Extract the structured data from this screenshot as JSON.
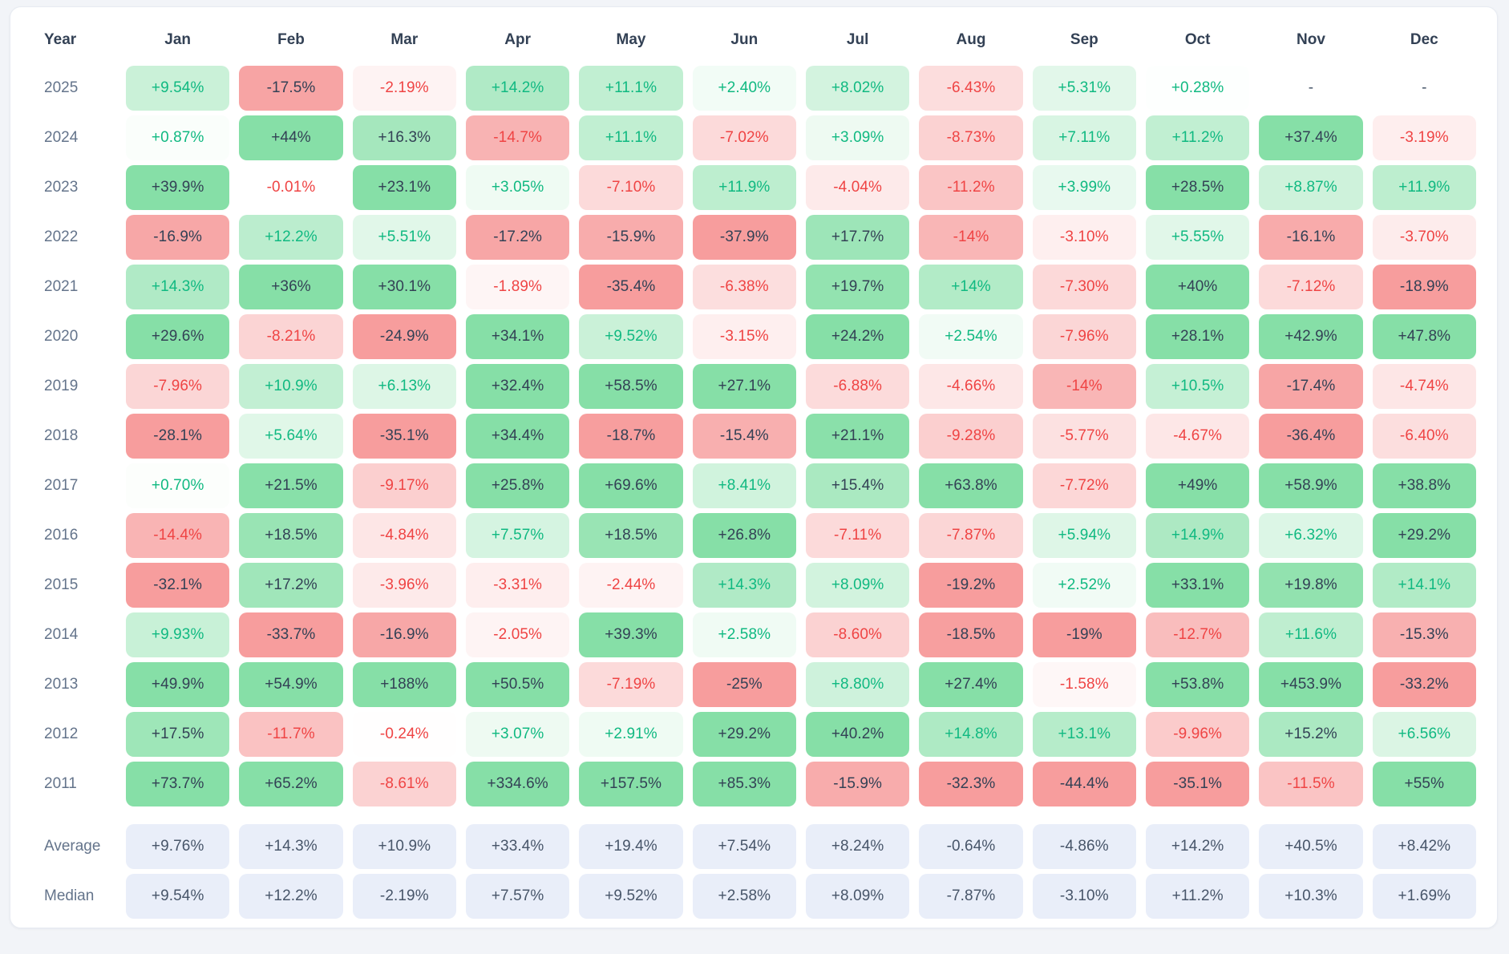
{
  "chart_data": {
    "type": "heatmap",
    "description": "Monthly percentage returns by year with average and median summary rows",
    "columns": [
      "Year",
      "Jan",
      "Feb",
      "Mar",
      "Apr",
      "May",
      "Jun",
      "Jul",
      "Aug",
      "Sep",
      "Oct",
      "Nov",
      "Dec"
    ],
    "rows": [
      {
        "year": "2025",
        "values": [
          "+9.54%",
          "-17.5%",
          "-2.19%",
          "+14.2%",
          "+11.1%",
          "+2.40%",
          "+8.02%",
          "-6.43%",
          "+5.31%",
          "+0.28%",
          "-",
          "-"
        ]
      },
      {
        "year": "2024",
        "values": [
          "+0.87%",
          "+44%",
          "+16.3%",
          "-14.7%",
          "+11.1%",
          "-7.02%",
          "+3.09%",
          "-8.73%",
          "+7.11%",
          "+11.2%",
          "+37.4%",
          "-3.19%"
        ]
      },
      {
        "year": "2023",
        "values": [
          "+39.9%",
          "-0.01%",
          "+23.1%",
          "+3.05%",
          "-7.10%",
          "+11.9%",
          "-4.04%",
          "-11.2%",
          "+3.99%",
          "+28.5%",
          "+8.87%",
          "+11.9%"
        ]
      },
      {
        "year": "2022",
        "values": [
          "-16.9%",
          "+12.2%",
          "+5.51%",
          "-17.2%",
          "-15.9%",
          "-37.9%",
          "+17.7%",
          "-14%",
          "-3.10%",
          "+5.55%",
          "-16.1%",
          "-3.70%"
        ]
      },
      {
        "year": "2021",
        "values": [
          "+14.3%",
          "+36%",
          "+30.1%",
          "-1.89%",
          "-35.4%",
          "-6.38%",
          "+19.7%",
          "+14%",
          "-7.30%",
          "+40%",
          "-7.12%",
          "-18.9%"
        ]
      },
      {
        "year": "2020",
        "values": [
          "+29.6%",
          "-8.21%",
          "-24.9%",
          "+34.1%",
          "+9.52%",
          "-3.15%",
          "+24.2%",
          "+2.54%",
          "-7.96%",
          "+28.1%",
          "+42.9%",
          "+47.8%"
        ]
      },
      {
        "year": "2019",
        "values": [
          "-7.96%",
          "+10.9%",
          "+6.13%",
          "+32.4%",
          "+58.5%",
          "+27.1%",
          "-6.88%",
          "-4.66%",
          "-14%",
          "+10.5%",
          "-17.4%",
          "-4.74%"
        ]
      },
      {
        "year": "2018",
        "values": [
          "-28.1%",
          "+5.64%",
          "-35.1%",
          "+34.4%",
          "-18.7%",
          "-15.4%",
          "+21.1%",
          "-9.28%",
          "-5.77%",
          "-4.67%",
          "-36.4%",
          "-6.40%"
        ]
      },
      {
        "year": "2017",
        "values": [
          "+0.70%",
          "+21.5%",
          "-9.17%",
          "+25.8%",
          "+69.6%",
          "+8.41%",
          "+15.4%",
          "+63.8%",
          "-7.72%",
          "+49%",
          "+58.9%",
          "+38.8%"
        ]
      },
      {
        "year": "2016",
        "values": [
          "-14.4%",
          "+18.5%",
          "-4.84%",
          "+7.57%",
          "+18.5%",
          "+26.8%",
          "-7.11%",
          "-7.87%",
          "+5.94%",
          "+14.9%",
          "+6.32%",
          "+29.2%"
        ]
      },
      {
        "year": "2015",
        "values": [
          "-32.1%",
          "+17.2%",
          "-3.96%",
          "-3.31%",
          "-2.44%",
          "+14.3%",
          "+8.09%",
          "-19.2%",
          "+2.52%",
          "+33.1%",
          "+19.8%",
          "+14.1%"
        ]
      },
      {
        "year": "2014",
        "values": [
          "+9.93%",
          "-33.7%",
          "-16.9%",
          "-2.05%",
          "+39.3%",
          "+2.58%",
          "-8.60%",
          "-18.5%",
          "-19%",
          "-12.7%",
          "+11.6%",
          "-15.3%"
        ]
      },
      {
        "year": "2013",
        "values": [
          "+49.9%",
          "+54.9%",
          "+188%",
          "+50.5%",
          "-7.19%",
          "-25%",
          "+8.80%",
          "+27.4%",
          "-1.58%",
          "+53.8%",
          "+453.9%",
          "-33.2%"
        ]
      },
      {
        "year": "2012",
        "values": [
          "+17.5%",
          "-11.7%",
          "-0.24%",
          "+3.07%",
          "+2.91%",
          "+29.2%",
          "+40.2%",
          "+14.8%",
          "+13.1%",
          "-9.96%",
          "+15.2%",
          "+6.56%"
        ]
      },
      {
        "year": "2011",
        "values": [
          "+73.7%",
          "+65.2%",
          "-8.61%",
          "+334.6%",
          "+157.5%",
          "+85.3%",
          "-15.9%",
          "-32.3%",
          "-44.4%",
          "-35.1%",
          "-11.5%",
          "+55%"
        ]
      }
    ],
    "summary": [
      {
        "label": "Average",
        "values": [
          "+9.76%",
          "+14.3%",
          "+10.9%",
          "+33.4%",
          "+19.4%",
          "+7.54%",
          "+8.24%",
          "-0.64%",
          "-4.86%",
          "+14.2%",
          "+40.5%",
          "+8.42%"
        ]
      },
      {
        "label": "Median",
        "values": [
          "+9.54%",
          "+12.2%",
          "-2.19%",
          "+7.57%",
          "+9.52%",
          "+2.58%",
          "+8.09%",
          "-7.87%",
          "-3.10%",
          "+11.2%",
          "+10.3%",
          "+1.69%"
        ]
      }
    ]
  },
  "colors": {
    "positive_base": "#22c55e",
    "negative_base": "#ef4444",
    "text_strong": "#334155",
    "text_positive": "#10b981",
    "text_negative": "#ef4444",
    "text_neutral": "#475569",
    "summary_bg": "#e9eef9",
    "summary_text": "#475569",
    "year_text": "#64748b",
    "header_text": "#334155"
  }
}
